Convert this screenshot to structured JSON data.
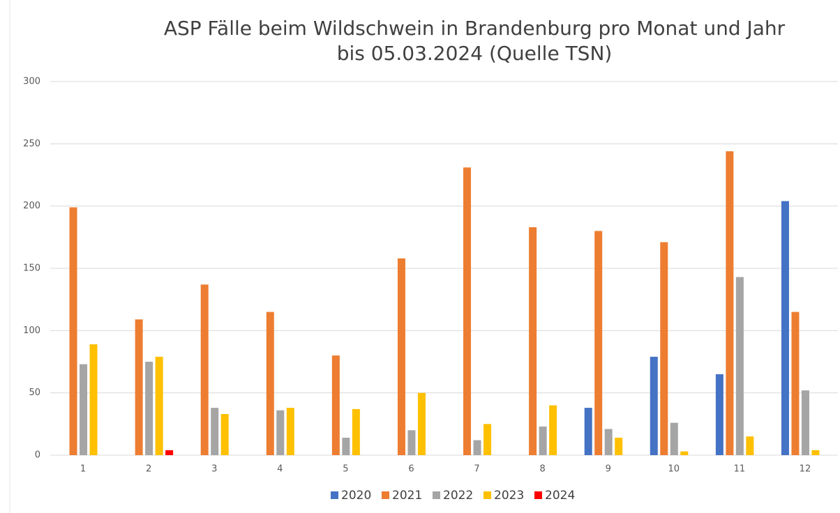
{
  "chart_data": {
    "type": "bar",
    "title": "ASP Fälle beim Wildschwein in Brandenburg pro Monat und Jahr",
    "subtitle": "bis 05.03.2024 (Quelle TSN)",
    "categories": [
      "1",
      "2",
      "3",
      "4",
      "5",
      "6",
      "7",
      "8",
      "9",
      "10",
      "11",
      "12"
    ],
    "series": [
      {
        "name": "2020",
        "color": "#4472c4",
        "values": [
          null,
          null,
          null,
          null,
          null,
          null,
          null,
          null,
          38,
          79,
          65,
          204
        ]
      },
      {
        "name": "2021",
        "color": "#ed7d31",
        "values": [
          199,
          109,
          137,
          115,
          80,
          158,
          231,
          183,
          180,
          171,
          244,
          115
        ]
      },
      {
        "name": "2022",
        "color": "#a5a5a5",
        "values": [
          73,
          75,
          38,
          36,
          14,
          20,
          12,
          23,
          21,
          26,
          143,
          52
        ]
      },
      {
        "name": "2023",
        "color": "#ffc000",
        "values": [
          89,
          79,
          33,
          38,
          37,
          50,
          25,
          40,
          14,
          3,
          15,
          4
        ]
      },
      {
        "name": "2024",
        "color": "#ff0000",
        "values": [
          null,
          4,
          null,
          null,
          null,
          null,
          null,
          null,
          null,
          null,
          null,
          null
        ]
      }
    ],
    "ylim": [
      0,
      300
    ],
    "yticks": [
      0,
      50,
      100,
      150,
      200,
      250,
      300
    ],
    "grid": true,
    "legend": "bottom"
  }
}
